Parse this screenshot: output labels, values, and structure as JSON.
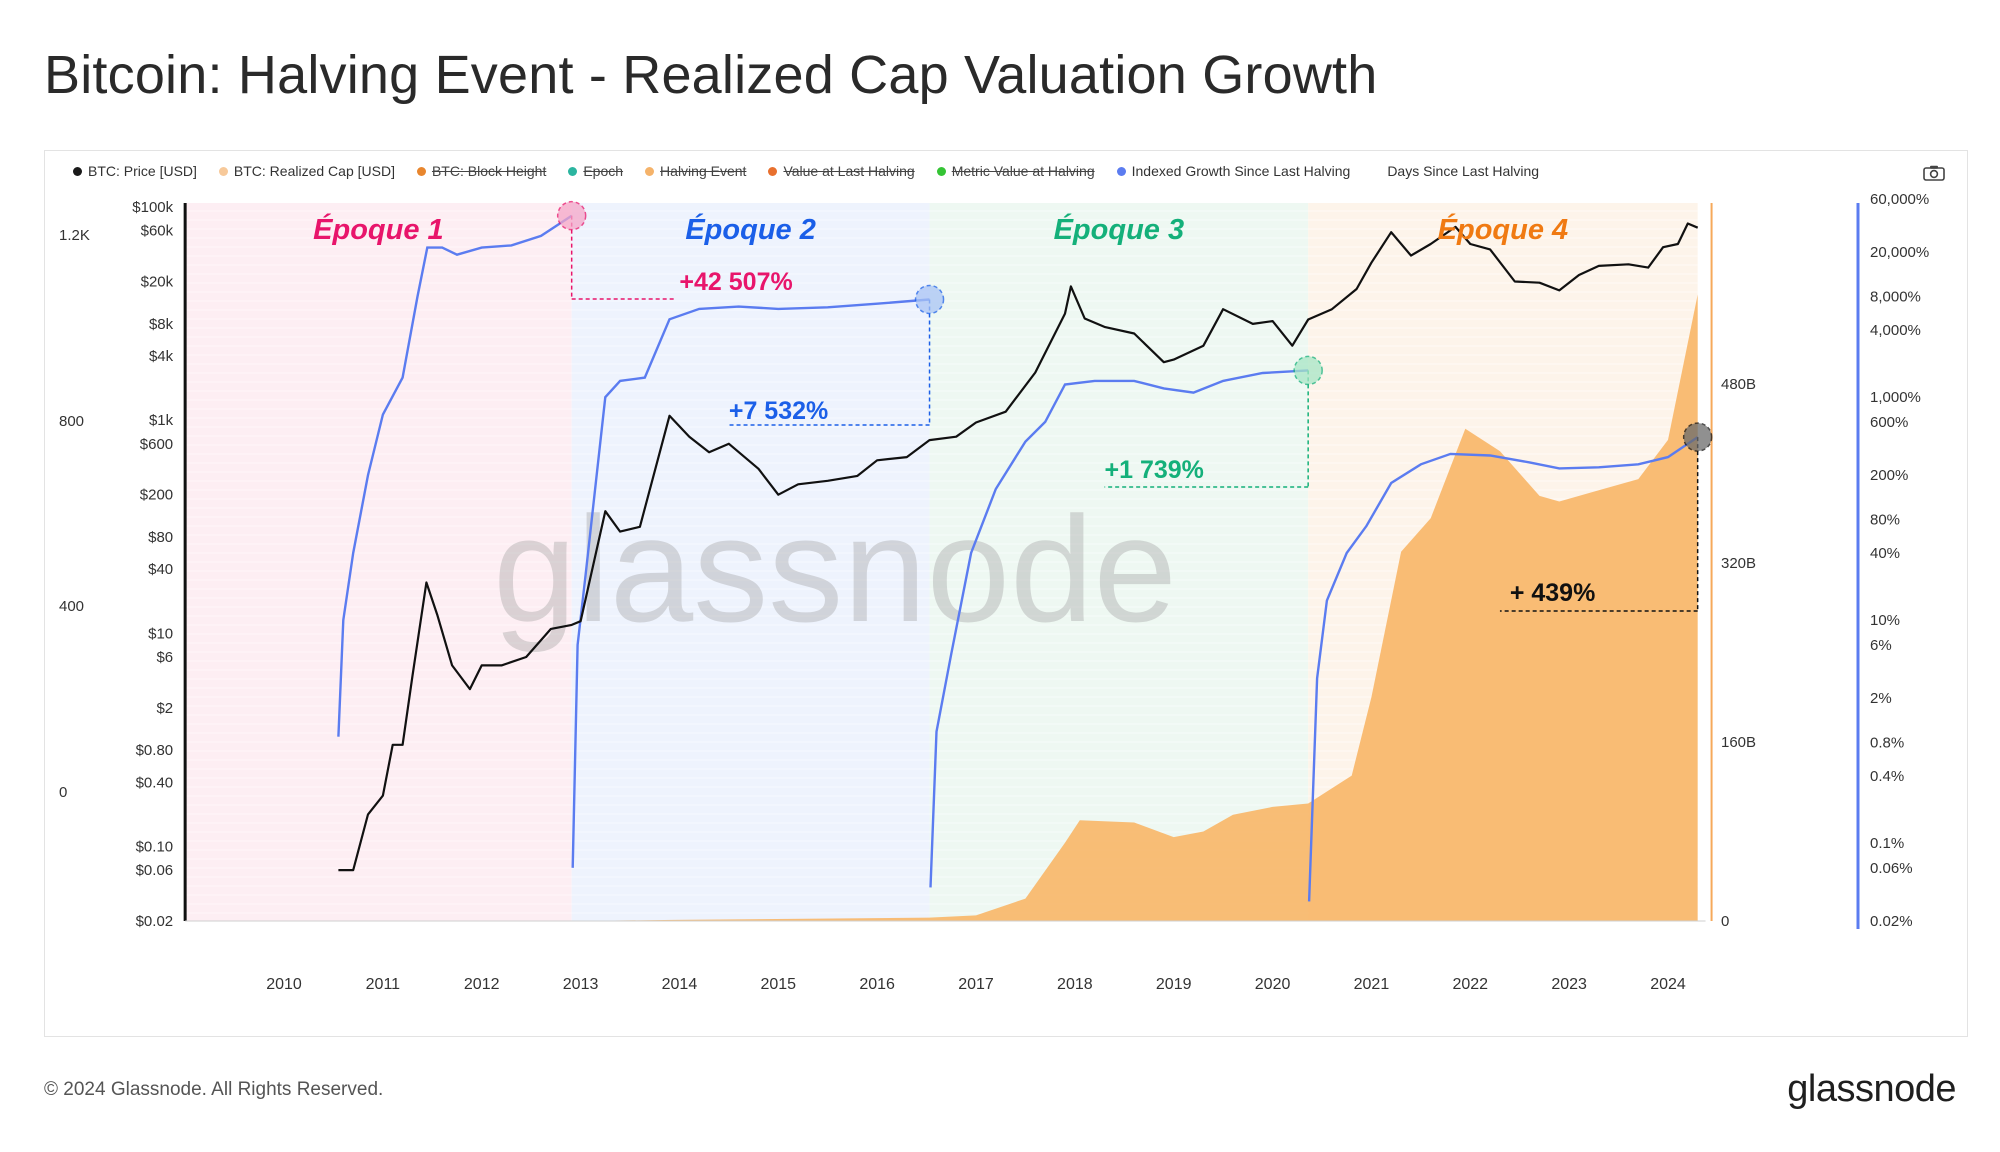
{
  "title": "Bitcoin: Halving Event - Realized Cap Valuation Growth",
  "footer": {
    "copyright": "© 2024 Glassnode. All Rights Reserved.",
    "logo": "glassnode"
  },
  "watermark": "glassnode",
  "legend": [
    {
      "label": "BTC: Price [USD]",
      "color": "#1a1a1a",
      "struck": false
    },
    {
      "label": "BTC: Realized Cap [USD]",
      "color": "#f7c99a",
      "struck": false
    },
    {
      "label": "BTC: Block Height",
      "color": "#e8862e",
      "struck": true
    },
    {
      "label": "Epoch",
      "color": "#2bb5a0",
      "struck": true
    },
    {
      "label": "Halving Event",
      "color": "#f5b36a",
      "struck": true
    },
    {
      "label": "Value at Last Halving",
      "color": "#e8702e",
      "struck": true
    },
    {
      "label": "Metric Value at Halving",
      "color": "#35c435",
      "struck": true
    },
    {
      "label": "Indexed Growth Since Last Halving",
      "color": "#5b7cf0",
      "struck": false
    },
    {
      "label": "Days Since Last Halving",
      "color": "",
      "struck": false
    }
  ],
  "colors": {
    "price": "#111111",
    "realized_cap": "#f8b667",
    "indexed_growth": "#5b7cf0",
    "epoch1": "#e8156b",
    "epoch2": "#1b5fe8",
    "epoch3": "#14b07a",
    "epoch4": "#f07a12"
  },
  "chart_data": {
    "type": "line",
    "title": "Bitcoin: Halving Event - Realized Cap Valuation Growth",
    "x_ticks": [
      "2010",
      "2011",
      "2012",
      "2013",
      "2014",
      "2015",
      "2016",
      "2017",
      "2018",
      "2019",
      "2020",
      "2021",
      "2022",
      "2023",
      "2024"
    ],
    "axes": {
      "days_since_halving_ticks": [
        "1.2K",
        "800",
        "400",
        "0"
      ],
      "price_ticks": [
        "$100k",
        "$60k",
        "$20k",
        "$8k",
        "$4k",
        "$1k",
        "$600",
        "$200",
        "$80",
        "$40",
        "$10",
        "$6",
        "$2",
        "$0.80",
        "$0.40",
        "$0.10",
        "$0.06",
        "$0.02"
      ],
      "realized_cap_ticks": [
        "480B",
        "320B",
        "160B",
        "0"
      ],
      "indexed_growth_ticks": [
        "60,000%",
        "20,000%",
        "8,000%",
        "4,000%",
        "1,000%",
        "600%",
        "200%",
        "80%",
        "40%",
        "10%",
        "6%",
        "2%",
        "0.8%",
        "0.4%",
        "0.1%",
        "0.06%",
        "0.02%"
      ],
      "price_scale": "log",
      "indexed_growth_scale": "log"
    },
    "epochs": [
      {
        "label": "Époque 1",
        "start": 2009.0,
        "end": 2012.91,
        "color": "#e8156b"
      },
      {
        "label": "Époque 2",
        "start": 2012.91,
        "end": 2016.53,
        "color": "#1b5fe8"
      },
      {
        "label": "Époque 3",
        "start": 2016.53,
        "end": 2020.36,
        "color": "#14b07a"
      },
      {
        "label": "Époque 4",
        "start": 2020.36,
        "end": 2024.3,
        "color": "#f07a12"
      }
    ],
    "annotations": [
      {
        "text": "+42 507%",
        "color": "#e8156b",
        "x": 2012.91,
        "growth_pct": 42507
      },
      {
        "text": "+7 532%",
        "color": "#1b5fe8",
        "x": 2016.53,
        "growth_pct": 7532
      },
      {
        "text": "+1 739%",
        "color": "#14b07a",
        "x": 2020.36,
        "growth_pct": 1739
      },
      {
        "text": "+ 439%",
        "color": "#111111",
        "x": 2024.3,
        "growth_pct": 439
      }
    ],
    "series": [
      {
        "name": "BTC: Price [USD]",
        "axis": "price",
        "points": [
          [
            2010.55,
            0.06
          ],
          [
            2010.7,
            0.06
          ],
          [
            2010.85,
            0.2
          ],
          [
            2011.0,
            0.3
          ],
          [
            2011.1,
            0.9
          ],
          [
            2011.2,
            0.9
          ],
          [
            2011.3,
            4
          ],
          [
            2011.44,
            30
          ],
          [
            2011.55,
            15
          ],
          [
            2011.7,
            5
          ],
          [
            2011.88,
            3
          ],
          [
            2012.0,
            5
          ],
          [
            2012.2,
            5
          ],
          [
            2012.45,
            6
          ],
          [
            2012.7,
            11
          ],
          [
            2012.91,
            12
          ],
          [
            2013.0,
            13
          ],
          [
            2013.25,
            140
          ],
          [
            2013.4,
            90
          ],
          [
            2013.6,
            100
          ],
          [
            2013.9,
            1100
          ],
          [
            2014.1,
            700
          ],
          [
            2014.3,
            500
          ],
          [
            2014.5,
            600
          ],
          [
            2014.8,
            350
          ],
          [
            2015.0,
            200
          ],
          [
            2015.2,
            250
          ],
          [
            2015.5,
            270
          ],
          [
            2015.8,
            300
          ],
          [
            2016.0,
            420
          ],
          [
            2016.3,
            450
          ],
          [
            2016.53,
            650
          ],
          [
            2016.8,
            700
          ],
          [
            2017.0,
            950
          ],
          [
            2017.3,
            1200
          ],
          [
            2017.6,
            2800
          ],
          [
            2017.9,
            10000
          ],
          [
            2017.96,
            18000
          ],
          [
            2018.1,
            9000
          ],
          [
            2018.3,
            7500
          ],
          [
            2018.6,
            6500
          ],
          [
            2018.9,
            3500
          ],
          [
            2019.0,
            3700
          ],
          [
            2019.3,
            5000
          ],
          [
            2019.5,
            11000
          ],
          [
            2019.8,
            8000
          ],
          [
            2020.0,
            8500
          ],
          [
            2020.2,
            5000
          ],
          [
            2020.36,
            8800
          ],
          [
            2020.6,
            11000
          ],
          [
            2020.85,
            17000
          ],
          [
            2021.0,
            30000
          ],
          [
            2021.2,
            58000
          ],
          [
            2021.4,
            35000
          ],
          [
            2021.6,
            45000
          ],
          [
            2021.85,
            65000
          ],
          [
            2022.0,
            45000
          ],
          [
            2022.2,
            40000
          ],
          [
            2022.45,
            20000
          ],
          [
            2022.7,
            19500
          ],
          [
            2022.9,
            16500
          ],
          [
            2023.1,
            23000
          ],
          [
            2023.3,
            28000
          ],
          [
            2023.6,
            29000
          ],
          [
            2023.8,
            27000
          ],
          [
            2023.95,
            42000
          ],
          [
            2024.1,
            45000
          ],
          [
            2024.2,
            70000
          ],
          [
            2024.3,
            64000
          ]
        ]
      },
      {
        "name": "Indexed Growth Since Last Halving",
        "axis": "indexed_growth",
        "points": [
          [
            2010.55,
            0.9
          ],
          [
            2010.6,
            10
          ],
          [
            2010.7,
            40
          ],
          [
            2010.85,
            200
          ],
          [
            2011.0,
            700
          ],
          [
            2011.2,
            1500
          ],
          [
            2011.35,
            8000
          ],
          [
            2011.45,
            22000
          ],
          [
            2011.6,
            22000
          ],
          [
            2011.75,
            19000
          ],
          [
            2012.0,
            22000
          ],
          [
            2012.3,
            23000
          ],
          [
            2012.6,
            28000
          ],
          [
            2012.91,
            42507
          ],
          [
            2012.92,
            0.06
          ],
          [
            2012.97,
            6
          ],
          [
            2013.05,
            25
          ],
          [
            2013.25,
            1000
          ],
          [
            2013.4,
            1400
          ],
          [
            2013.65,
            1500
          ],
          [
            2013.9,
            5000
          ],
          [
            2014.2,
            6200
          ],
          [
            2014.6,
            6500
          ],
          [
            2015.0,
            6200
          ],
          [
            2015.5,
            6400
          ],
          [
            2016.0,
            6900
          ],
          [
            2016.53,
            7532
          ],
          [
            2016.54,
            0.04
          ],
          [
            2016.6,
            1
          ],
          [
            2016.75,
            5
          ],
          [
            2016.95,
            40
          ],
          [
            2017.2,
            150
          ],
          [
            2017.5,
            400
          ],
          [
            2017.7,
            600
          ],
          [
            2017.9,
            1300
          ],
          [
            2018.2,
            1400
          ],
          [
            2018.6,
            1400
          ],
          [
            2018.9,
            1200
          ],
          [
            2019.2,
            1100
          ],
          [
            2019.5,
            1400
          ],
          [
            2019.9,
            1650
          ],
          [
            2020.36,
            1739
          ],
          [
            2020.37,
            0.03
          ],
          [
            2020.45,
            3
          ],
          [
            2020.55,
            15
          ],
          [
            2020.75,
            40
          ],
          [
            2020.95,
            70
          ],
          [
            2021.2,
            170
          ],
          [
            2021.5,
            250
          ],
          [
            2021.8,
            310
          ],
          [
            2022.2,
            300
          ],
          [
            2022.6,
            260
          ],
          [
            2022.9,
            230
          ],
          [
            2023.3,
            235
          ],
          [
            2023.7,
            250
          ],
          [
            2024.0,
            290
          ],
          [
            2024.3,
            439
          ]
        ]
      },
      {
        "name": "BTC: Realized Cap [USD]",
        "axis": "realized_cap_B",
        "points": [
          [
            2010.55,
            0
          ],
          [
            2012.91,
            0
          ],
          [
            2013.95,
            1
          ],
          [
            2016.53,
            3
          ],
          [
            2017.0,
            5
          ],
          [
            2017.5,
            20
          ],
          [
            2017.9,
            70
          ],
          [
            2018.05,
            90
          ],
          [
            2018.6,
            88
          ],
          [
            2019.0,
            75
          ],
          [
            2019.3,
            80
          ],
          [
            2019.6,
            95
          ],
          [
            2020.0,
            102
          ],
          [
            2020.36,
            105
          ],
          [
            2020.8,
            130
          ],
          [
            2021.0,
            200
          ],
          [
            2021.3,
            330
          ],
          [
            2021.6,
            360
          ],
          [
            2021.95,
            440
          ],
          [
            2022.3,
            420
          ],
          [
            2022.7,
            380
          ],
          [
            2022.9,
            375
          ],
          [
            2023.3,
            385
          ],
          [
            2023.7,
            395
          ],
          [
            2024.0,
            430
          ],
          [
            2024.3,
            560
          ]
        ]
      }
    ]
  }
}
